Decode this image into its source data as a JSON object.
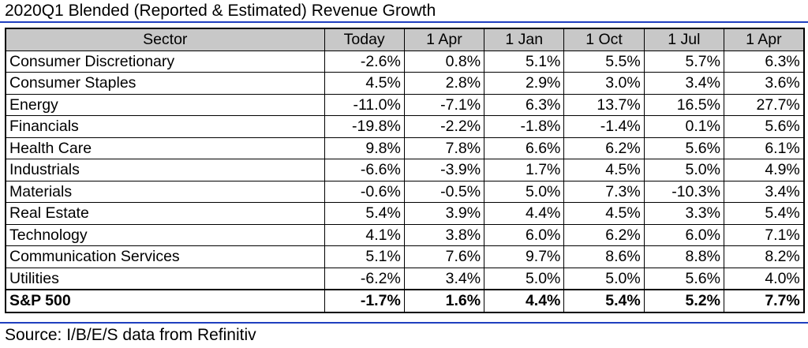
{
  "title": "2020Q1 Blended (Reported & Estimated) Revenue Growth",
  "table": {
    "headers": [
      "Sector",
      "Today",
      "1 Apr",
      "1 Jan",
      "1 Oct",
      "1 Jul",
      "1 Apr"
    ],
    "rows": [
      {
        "sector": "Consumer Discretionary",
        "values": [
          "-2.6%",
          "0.8%",
          "5.1%",
          "5.5%",
          "5.7%",
          "6.3%"
        ]
      },
      {
        "sector": "Consumer Staples",
        "values": [
          "4.5%",
          "2.8%",
          "2.9%",
          "3.0%",
          "3.4%",
          "3.6%"
        ]
      },
      {
        "sector": "Energy",
        "values": [
          "-11.0%",
          "-7.1%",
          "6.3%",
          "13.7%",
          "16.5%",
          "27.7%"
        ]
      },
      {
        "sector": "Financials",
        "values": [
          "-19.8%",
          "-2.2%",
          "-1.8%",
          "-1.4%",
          "0.1%",
          "5.6%"
        ]
      },
      {
        "sector": "Health Care",
        "values": [
          "9.8%",
          "7.8%",
          "6.6%",
          "6.2%",
          "5.6%",
          "6.1%"
        ]
      },
      {
        "sector": "Industrials",
        "values": [
          "-6.6%",
          "-3.9%",
          "1.7%",
          "4.5%",
          "5.0%",
          "4.9%"
        ]
      },
      {
        "sector": "Materials",
        "values": [
          "-0.6%",
          "-0.5%",
          "5.0%",
          "7.3%",
          "-10.3%",
          "3.4%"
        ]
      },
      {
        "sector": "Real Estate",
        "values": [
          "5.4%",
          "3.9%",
          "4.4%",
          "4.5%",
          "3.3%",
          "5.4%"
        ]
      },
      {
        "sector": "Technology",
        "values": [
          "4.1%",
          "3.8%",
          "6.0%",
          "6.2%",
          "6.0%",
          "7.1%"
        ]
      },
      {
        "sector": "Communication Services",
        "values": [
          "5.1%",
          "7.6%",
          "9.7%",
          "8.6%",
          "8.8%",
          "8.2%"
        ]
      },
      {
        "sector": "Utilities",
        "values": [
          "-6.2%",
          "3.4%",
          "5.0%",
          "5.0%",
          "5.6%",
          "4.0%"
        ]
      }
    ],
    "total": {
      "sector": "S&P 500",
      "values": [
        "-1.7%",
        "1.6%",
        "4.4%",
        "5.4%",
        "5.2%",
        "7.7%"
      ]
    }
  },
  "source": "Source: I/B/E/S data from Refinitiv",
  "colors": {
    "header_background": "#c8c8c8",
    "rule": "#1f3fbf"
  }
}
